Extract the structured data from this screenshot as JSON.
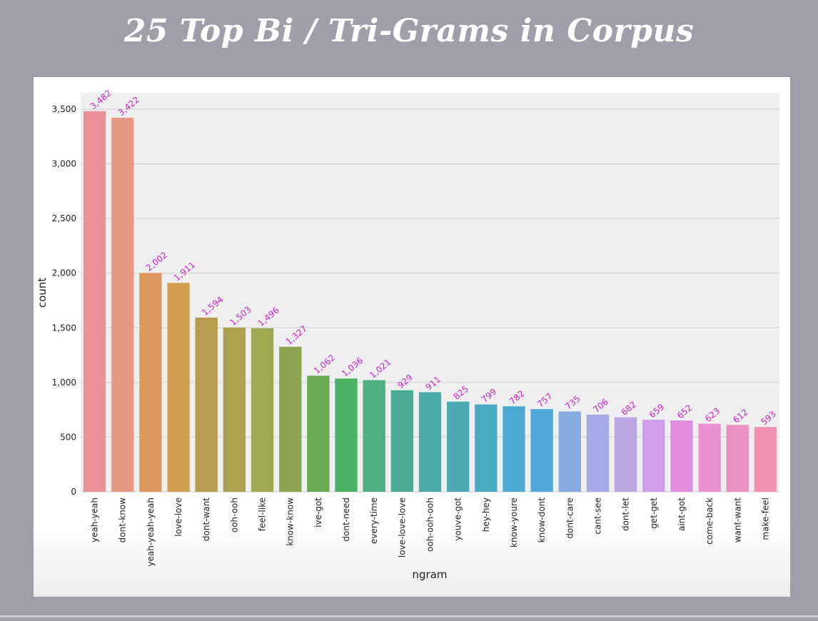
{
  "page": {
    "title": "25 Top Bi / Tri-Grams in Corpus"
  },
  "chart_data": {
    "type": "bar",
    "title": "",
    "xlabel": "ngram",
    "ylabel": "count",
    "ylim": [
      0,
      3650
    ],
    "yticks": [
      0,
      500,
      1000,
      1500,
      2000,
      2500,
      3000,
      3500
    ],
    "ytick_labels": [
      "0",
      "500",
      "1,000",
      "1,500",
      "2,000",
      "2,500",
      "3,000",
      "3,500"
    ],
    "grid": true,
    "data_label_color": "#cc22cc",
    "categories": [
      "yeah-yeah",
      "dont-know",
      "yeah-yeah-yeah",
      "love-love",
      "dont-want",
      "ooh-ooh",
      "feel-like",
      "know-know",
      "ive-got",
      "dont-need",
      "every-time",
      "love-love-love",
      "ooh-ooh-ooh",
      "youve-got",
      "hey-hey",
      "know-youre",
      "know-dont",
      "dont-care",
      "cant-see",
      "dont-let",
      "get-get",
      "aint-got",
      "come-back",
      "want-want",
      "make-feel"
    ],
    "values": [
      3482,
      3422,
      2002,
      1911,
      1594,
      1503,
      1496,
      1327,
      1062,
      1036,
      1021,
      929,
      911,
      825,
      799,
      782,
      757,
      735,
      706,
      682,
      659,
      652,
      623,
      612,
      593
    ],
    "value_labels": [
      "3,482",
      "3,422",
      "2,002",
      "1,911",
      "1,594",
      "1,503",
      "1,496",
      "1,327",
      "1,062",
      "1,036",
      "1,021",
      "929",
      "911",
      "825",
      "799",
      "782",
      "757",
      "735",
      "706",
      "682",
      "659",
      "652",
      "623",
      "612",
      "593"
    ],
    "colors": [
      "#e8919b",
      "#e89985",
      "#de9a5e",
      "#d0a050",
      "#b89a50",
      "#aba050",
      "#9ea850",
      "#8ea550",
      "#6aab52",
      "#4ab262",
      "#4daf82",
      "#4cab95",
      "#4aaba8",
      "#4aa9b4",
      "#4aa9c2",
      "#4ba9d2",
      "#52aad8",
      "#86ace0",
      "#a6aae4",
      "#bba6e4",
      "#d09ee8",
      "#e08de0",
      "#e890d0",
      "#ea90c2",
      "#ee91b2"
    ]
  }
}
